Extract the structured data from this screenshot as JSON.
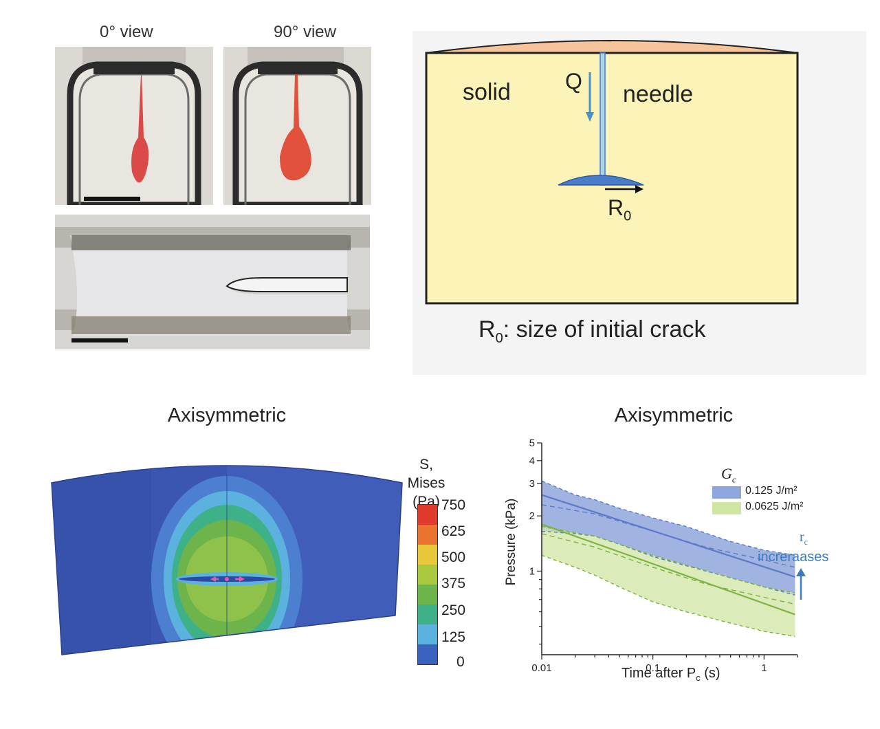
{
  "photos": {
    "view_left_label": "0° view",
    "view_right_label": "90° view"
  },
  "schematic": {
    "solid_label": "solid",
    "needle_label": "needle",
    "flow_label": "Q",
    "radius_symbol": "R",
    "radius_subscript": "0",
    "caption_symbol": "R",
    "caption_subscript": "0",
    "caption_text": ": size of initial crack",
    "colors": {
      "solid": "#fbf3b8",
      "cap": "#f5c49a",
      "fluid": "#4a7cc7",
      "needle": "#a9d4ee",
      "arrow": "#4a90c8"
    }
  },
  "fem": {
    "title": "Axisymmetric",
    "legend_title_line1": "S, Mises",
    "legend_title_line2": "(Pa)",
    "legend_values": [
      "750",
      "625",
      "500",
      "375",
      "250",
      "125",
      "0"
    ],
    "legend_colors": [
      "#e03a2a",
      "#ea7330",
      "#e9c73a",
      "#a9c83d",
      "#6db54a",
      "#3fb188",
      "#5bb2de",
      "#3c62c0"
    ]
  },
  "chart": {
    "title": "Axisymmetric",
    "legend_title": "G",
    "legend_title_sub": "c",
    "annotation_symbol": "r",
    "annotation_sub": "c",
    "annotation_text": "increraases",
    "xlabel_main": "Time after P",
    "xlabel_sub": "c",
    "xlabel_unit": " (s)",
    "ylabel": "Pressure (kPa)"
  },
  "chart_data": {
    "type": "area",
    "title": "Axisymmetric",
    "xlabel": "Time after Pc (s)",
    "ylabel": "Pressure (kPa)",
    "xscale": "log",
    "yscale": "log",
    "xlim": [
      0.01,
      2
    ],
    "ylim": [
      0.35,
      5
    ],
    "x_ticks": [
      "0.01",
      "0.1",
      "1"
    ],
    "y_ticks": [
      "1",
      "2",
      "3",
      "4",
      "5"
    ],
    "legend_title": "Gc",
    "legend_position": "top-right",
    "series": [
      {
        "name": "0.125 J/m²",
        "color": "#5b7bc7",
        "fill": "#8fa6dc",
        "fit_line": [
          [
            0.01,
            2.6
          ],
          [
            1.9,
            0.93
          ]
        ],
        "upper": [
          [
            0.01,
            3.1
          ],
          [
            0.02,
            2.6
          ],
          [
            0.03,
            2.45
          ],
          [
            0.05,
            2.2
          ],
          [
            0.1,
            1.95
          ],
          [
            0.2,
            1.75
          ],
          [
            0.5,
            1.45
          ],
          [
            1.0,
            1.3
          ],
          [
            1.9,
            1.22
          ]
        ],
        "lower": [
          [
            0.01,
            1.65
          ],
          [
            0.02,
            1.6
          ],
          [
            0.03,
            1.55
          ],
          [
            0.05,
            1.4
          ],
          [
            0.1,
            1.2
          ],
          [
            0.2,
            1.07
          ],
          [
            0.5,
            0.92
          ],
          [
            1.0,
            0.82
          ],
          [
            1.9,
            0.74
          ]
        ],
        "dashed_mean": [
          [
            0.01,
            2.3
          ],
          [
            0.03,
            2.05
          ],
          [
            0.1,
            1.65
          ],
          [
            0.3,
            1.35
          ],
          [
            1.0,
            1.15
          ],
          [
            1.9,
            1.05
          ]
        ]
      },
      {
        "name": "0.0625 J/m²",
        "color": "#7cb342",
        "fill": "#cfe5a3",
        "fit_line": [
          [
            0.01,
            1.8
          ],
          [
            1.9,
            0.58
          ]
        ],
        "upper": [
          [
            0.01,
            1.75
          ],
          [
            0.02,
            1.62
          ],
          [
            0.03,
            1.55
          ],
          [
            0.05,
            1.4
          ],
          [
            0.1,
            1.22
          ],
          [
            0.2,
            1.08
          ],
          [
            0.5,
            0.92
          ],
          [
            1.0,
            0.82
          ],
          [
            1.9,
            0.76
          ]
        ],
        "lower": [
          [
            0.01,
            1.22
          ],
          [
            0.02,
            1.05
          ],
          [
            0.03,
            0.95
          ],
          [
            0.05,
            0.82
          ],
          [
            0.1,
            0.68
          ],
          [
            0.2,
            0.6
          ],
          [
            0.5,
            0.52
          ],
          [
            1.0,
            0.47
          ],
          [
            1.9,
            0.44
          ]
        ],
        "dashed_mean": [
          [
            0.01,
            1.6
          ],
          [
            0.03,
            1.35
          ],
          [
            0.1,
            1.05
          ],
          [
            0.3,
            0.85
          ],
          [
            1.0,
            0.72
          ],
          [
            1.9,
            0.66
          ]
        ]
      }
    ]
  }
}
